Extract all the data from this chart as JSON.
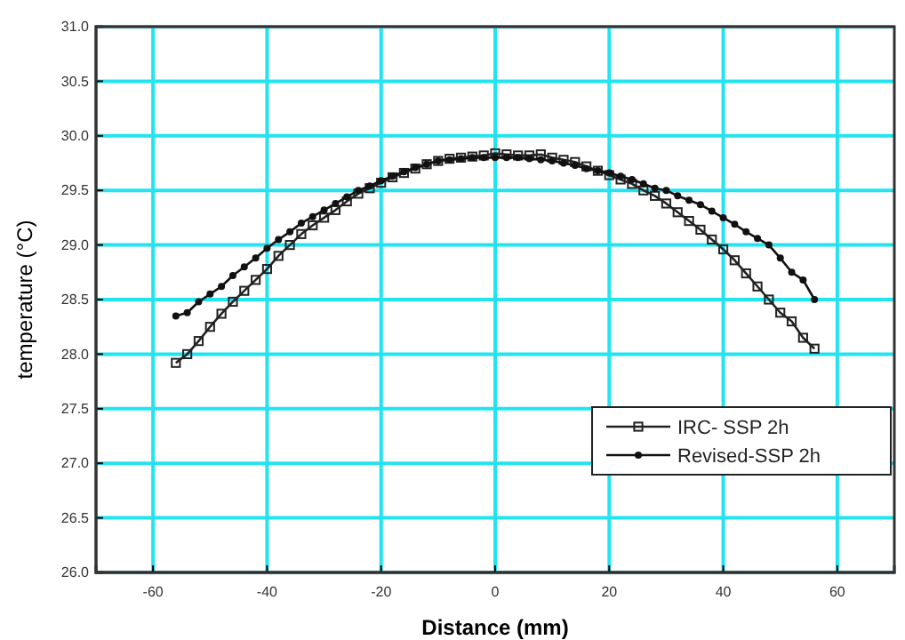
{
  "chart_data": {
    "type": "line",
    "xlabel": "Distance (mm)",
    "ylabel": "temperature (°C)",
    "xlim": [
      -70,
      70
    ],
    "xticks": [
      -60,
      -40,
      -20,
      0,
      20,
      40,
      60
    ],
    "ylim": [
      26,
      31
    ],
    "yticks": [
      {
        "value": 26,
        "label": "26.0"
      },
      {
        "value": 26.5,
        "label": "26.5"
      },
      {
        "value": 27,
        "label": "27.0"
      },
      {
        "value": 27.5,
        "label": "27.5"
      },
      {
        "value": 28,
        "label": "28.0"
      },
      {
        "value": 28.5,
        "label": "28.5"
      },
      {
        "value": 29,
        "label": "29.0"
      },
      {
        "value": 29.5,
        "label": "29.5"
      },
      {
        "value": 30,
        "label": "30.0"
      },
      {
        "value": 30.5,
        "label": "30.5"
      },
      {
        "value": 31,
        "label": "31.0"
      }
    ],
    "grid": true,
    "legend": "bottom right",
    "series": [
      {
        "name": "IRC- SSP 2h",
        "color": "#222222",
        "marker": "square",
        "x": [
          -56,
          -54,
          -52,
          -50,
          -48,
          -46,
          -44,
          -42,
          -40,
          -38,
          -36,
          -34,
          -32,
          -30,
          -28,
          -26,
          -24,
          -22,
          -20,
          -18,
          -16,
          -14,
          -12,
          -10,
          -8,
          -6,
          -4,
          -2,
          0,
          2,
          4,
          6,
          8,
          10,
          12,
          14,
          16,
          18,
          20,
          22,
          24,
          26,
          28,
          30,
          32,
          34,
          36,
          38,
          40,
          42,
          44,
          46,
          48,
          50,
          52,
          54,
          56
        ],
        "values": [
          27.92,
          28.0,
          28.12,
          28.25,
          28.37,
          28.48,
          28.58,
          28.68,
          28.78,
          28.9,
          29.0,
          29.1,
          29.18,
          29.25,
          29.32,
          29.4,
          29.47,
          29.52,
          29.57,
          29.62,
          29.66,
          29.7,
          29.74,
          29.77,
          29.79,
          29.8,
          29.81,
          29.82,
          29.84,
          29.83,
          29.82,
          29.82,
          29.83,
          29.8,
          29.78,
          29.76,
          29.72,
          29.68,
          29.64,
          29.6,
          29.56,
          29.5,
          29.45,
          29.38,
          29.3,
          29.22,
          29.14,
          29.05,
          28.96,
          28.86,
          28.74,
          28.62,
          28.5,
          28.38,
          28.3,
          28.15,
          28.05
        ]
      },
      {
        "name": "Revised-SSP 2h",
        "color": "#111111",
        "marker": "circle",
        "x": [
          -56,
          -54,
          -52,
          -50,
          -48,
          -46,
          -44,
          -42,
          -40,
          -38,
          -36,
          -34,
          -32,
          -30,
          -28,
          -26,
          -24,
          -22,
          -20,
          -18,
          -16,
          -14,
          -12,
          -10,
          -8,
          -6,
          -4,
          -2,
          0,
          2,
          4,
          6,
          8,
          10,
          12,
          14,
          16,
          18,
          20,
          22,
          24,
          26,
          28,
          30,
          32,
          34,
          36,
          38,
          40,
          42,
          44,
          46,
          48,
          50,
          52,
          54,
          56
        ],
        "values": [
          28.35,
          28.38,
          28.48,
          28.55,
          28.62,
          28.72,
          28.8,
          28.88,
          28.97,
          29.05,
          29.12,
          29.2,
          29.26,
          29.32,
          29.38,
          29.44,
          29.5,
          29.54,
          29.59,
          29.63,
          29.67,
          29.71,
          29.74,
          29.77,
          29.78,
          29.79,
          29.8,
          29.8,
          29.8,
          29.8,
          29.8,
          29.79,
          29.78,
          29.77,
          29.75,
          29.73,
          29.7,
          29.68,
          29.66,
          29.63,
          29.6,
          29.56,
          29.52,
          29.5,
          29.45,
          29.41,
          29.37,
          29.31,
          29.25,
          29.19,
          29.12,
          29.06,
          29.0,
          28.88,
          28.75,
          28.68,
          28.5
        ]
      }
    ]
  }
}
